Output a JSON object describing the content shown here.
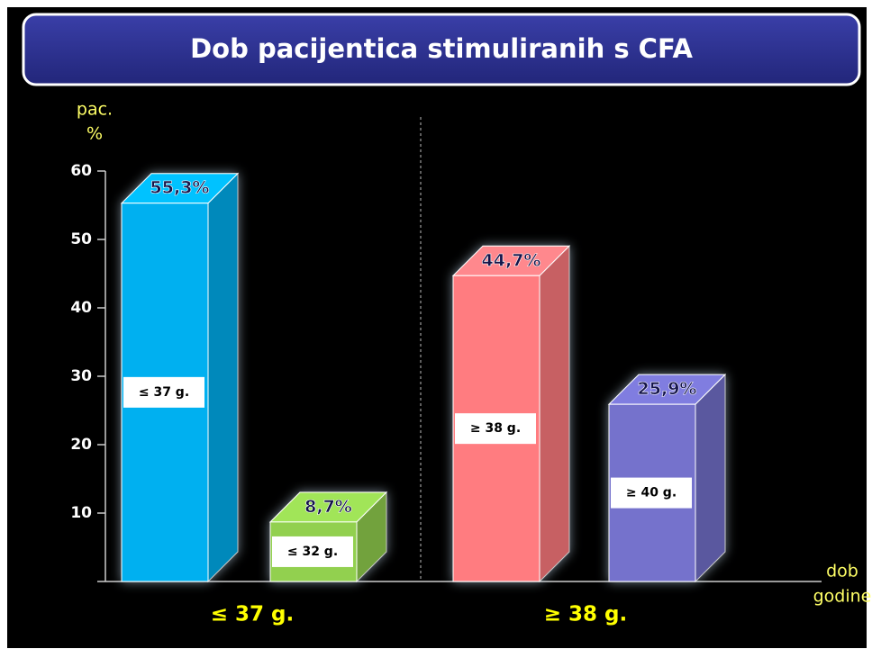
{
  "chart_data": {
    "type": "bar3d",
    "title": "Dob pacijentica stimuliranih s CFA",
    "y_label": [
      "pac.",
      "%"
    ],
    "x_label": [
      "dob",
      "godine"
    ],
    "categories": [
      "≤ 37 g.",
      "≤ 32 g.",
      "≥ 38 g.",
      "≥ 40 g."
    ],
    "values": [
      55.3,
      8.7,
      44.7,
      25.9
    ],
    "value_labels": [
      "55,3%",
      "8,7%",
      "44,7%",
      "25,9%"
    ],
    "colors": [
      "#00b0f0",
      "#92d050",
      "#ff7c80",
      "#7472cc"
    ],
    "group_labels": [
      "≤ 37 g.",
      "≥ 38 g."
    ],
    "ylim": [
      0,
      60
    ],
    "yticks": [
      10,
      20,
      30,
      40,
      50,
      60
    ]
  }
}
